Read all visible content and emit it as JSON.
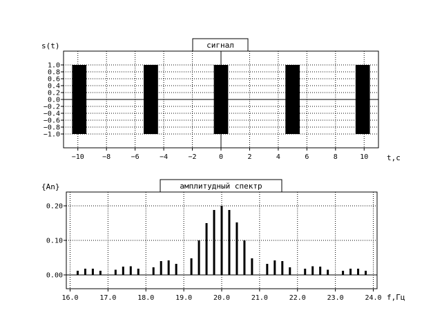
{
  "chart_data": [
    {
      "type": "area",
      "title": "сигнал",
      "ylabel": "s(t)",
      "xlabel": "t,c",
      "xlim": [
        -11,
        11
      ],
      "ylim": [
        -1.4,
        1.4
      ],
      "grid": true,
      "x_ticks": [
        -10,
        -8,
        -6,
        -4,
        -2,
        0,
        2,
        4,
        6,
        8,
        10
      ],
      "x_tick_labels": [
        "−10",
        "−8",
        "−6",
        "−4",
        "−2",
        "0",
        "2",
        "4",
        "6",
        "8",
        "10"
      ],
      "y_ticks": [
        1.0,
        0.8,
        0.6,
        0.4,
        0.2,
        0.0,
        -0.2,
        -0.4,
        -0.6,
        -0.8,
        -1.0
      ],
      "y_tick_labels": [
        "1.0",
        "0.8",
        "0.6",
        "0.4",
        "0.2",
        "0.0",
        "−0.2",
        "−0.4",
        "−0.6",
        "−0.8",
        "−1.0"
      ],
      "pulses": [
        {
          "start": -10.4,
          "end": -9.4
        },
        {
          "start": -5.4,
          "end": -4.4
        },
        {
          "start": -0.5,
          "end": 0.5
        },
        {
          "start": 4.5,
          "end": 5.5
        },
        {
          "start": 9.4,
          "end": 10.4
        }
      ],
      "pulse_min": -1.0,
      "pulse_max": 1.0,
      "color": "#000000"
    },
    {
      "type": "bar",
      "title": "амплитудный спектр",
      "ylabel": "{An}",
      "xlabel": "f,Гц",
      "xlim": [
        15.9,
        24.1
      ],
      "ylim": [
        -0.04,
        0.24
      ],
      "grid": true,
      "x_ticks": [
        16,
        17,
        18,
        19,
        20,
        21,
        22,
        23,
        24
      ],
      "x_tick_labels": [
        "16.0",
        "17.0",
        "18.0",
        "19.0",
        "20.0",
        "21.0",
        "22.0",
        "23.0",
        "24.0"
      ],
      "y_ticks": [
        0.2,
        0.1,
        0.0
      ],
      "y_tick_labels": [
        "0.20",
        "0.10",
        "0.00"
      ],
      "x": [
        16.2,
        16.4,
        16.6,
        16.8,
        17.0,
        17.2,
        17.4,
        17.6,
        17.8,
        18.0,
        18.2,
        18.4,
        18.6,
        18.8,
        19.0,
        19.2,
        19.4,
        19.6,
        19.8,
        20.0,
        20.2,
        20.4,
        20.6,
        20.8,
        21.0,
        21.2,
        21.4,
        21.6,
        21.8,
        22.0,
        22.2,
        22.4,
        22.6,
        22.8,
        23.0,
        23.2,
        23.4,
        23.6,
        23.8
      ],
      "values": [
        0.012,
        0.018,
        0.018,
        0.012,
        0.0,
        0.015,
        0.024,
        0.025,
        0.018,
        0.0,
        0.022,
        0.04,
        0.042,
        0.032,
        0.0,
        0.048,
        0.1,
        0.15,
        0.188,
        0.2,
        0.188,
        0.152,
        0.1,
        0.048,
        0.0,
        0.032,
        0.042,
        0.04,
        0.022,
        0.0,
        0.018,
        0.025,
        0.024,
        0.015,
        0.0,
        0.012,
        0.018,
        0.018,
        0.012
      ],
      "color": "#000000"
    }
  ]
}
